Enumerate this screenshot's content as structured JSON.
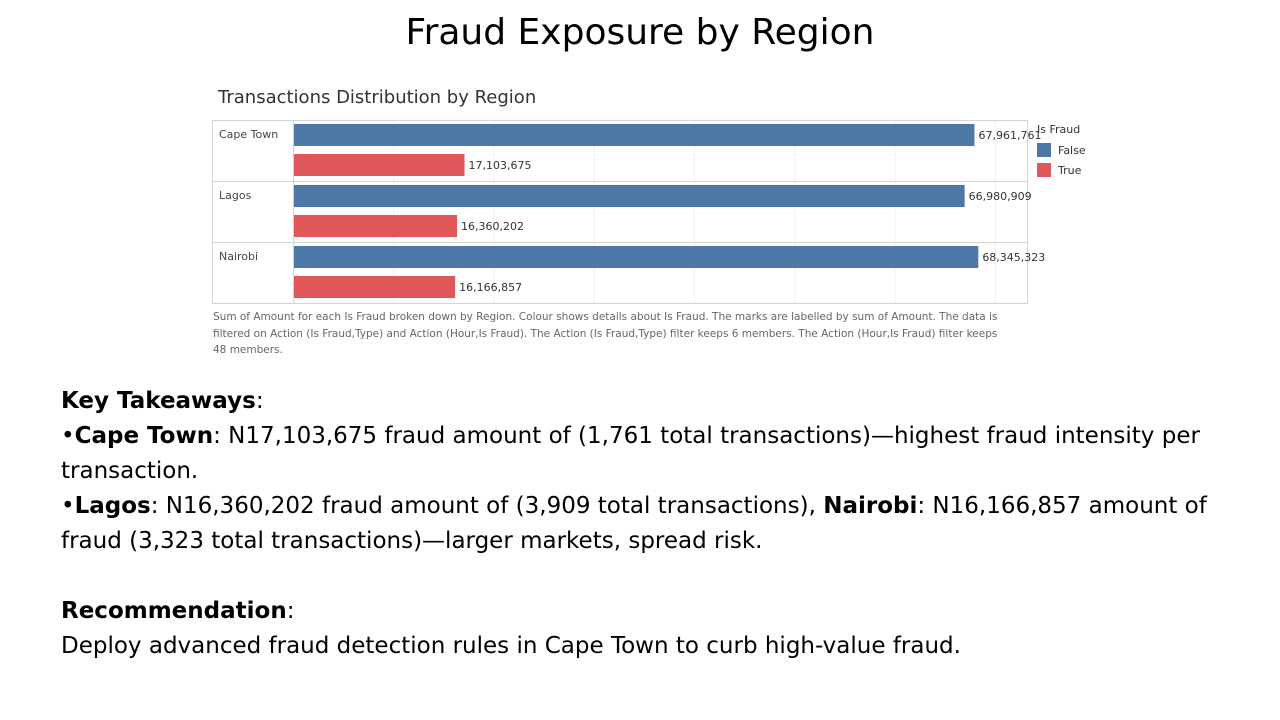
{
  "slide": {
    "title": "Fraud Exposure by Region"
  },
  "chart_data": {
    "type": "bar",
    "orientation": "horizontal",
    "title": "Transactions Distribution by Region",
    "categories": [
      "Cape Town",
      "Lagos",
      "Nairobi"
    ],
    "series": [
      {
        "name": "False",
        "color": "#4e79a7",
        "values": [
          67961761,
          66980909,
          68345323
        ],
        "labels": [
          "67,961,761",
          "66,980,909",
          "68,345,323"
        ]
      },
      {
        "name": "True",
        "color": "#e15759",
        "values": [
          17103675,
          16360202,
          16166857
        ],
        "labels": [
          "17,103,675",
          "16,360,202",
          "16,166,857"
        ]
      }
    ],
    "legend": {
      "title": "Is Fraud",
      "position": "right"
    },
    "xlim": [
      0,
      73000000
    ],
    "grid": true,
    "caption": "Sum of Amount for each Is Fraud broken down by Region.  Colour shows details about Is Fraud.  The marks are labelled by sum of Amount. The data is filtered on Action (Is Fraud,Type) and Action (Hour,Is Fraud). The Action (Is Fraud,Type) filter keeps 6 members. The Action (Hour,Is Fraud) filter keeps 48 members."
  },
  "takeaways": {
    "heading": "Key Takeaways",
    "heading_suffix": ":",
    "item1": {
      "bullet": "•",
      "region": "Cape Town",
      "text": ": N17,103,675 fraud amount of (1,761 total transactions)—highest fraud intensity per transaction."
    },
    "item2": {
      "bullet": "•",
      "region_a": "Lagos",
      "text_a": ": N16,360,202 fraud amount of (3,909 total transactions), ",
      "region_b": "Nairobi",
      "text_b": ": N16,166,857 amount of fraud (3,323 total transactions)—larger markets, spread risk."
    },
    "recommendation_heading": "Recommendation",
    "recommendation_suffix": ":",
    "recommendation_text": "Deploy advanced fraud detection rules in Cape Town to curb high-value fraud."
  }
}
